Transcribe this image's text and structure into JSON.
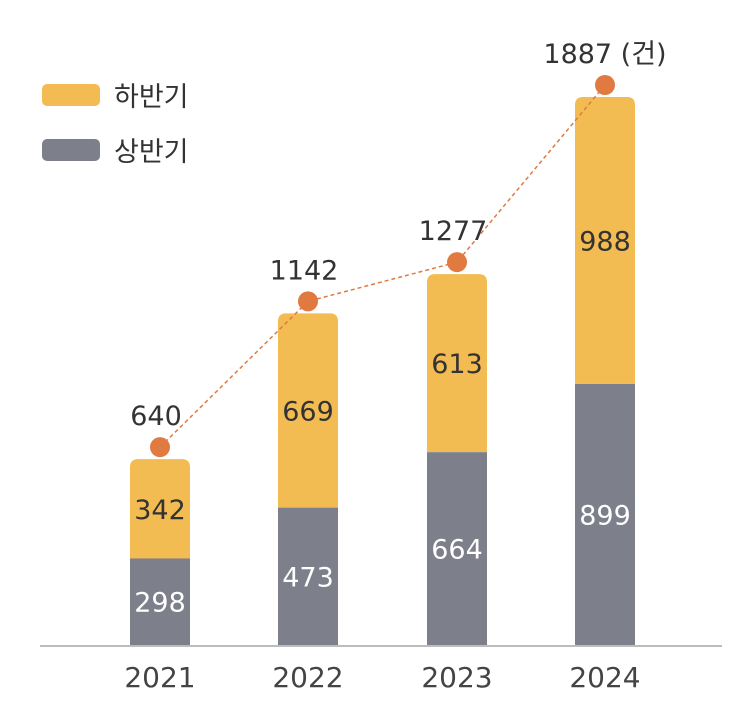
{
  "chart_data": {
    "type": "bar",
    "stacked": true,
    "categories": [
      "2021",
      "2022",
      "2023",
      "2024"
    ],
    "series": [
      {
        "name": "상반기",
        "values": [
          298,
          473,
          664,
          899
        ],
        "color": "#7D7F8A"
      },
      {
        "name": "하반기",
        "values": [
          342,
          669,
          613,
          988
        ],
        "color": "#F3BC53"
      }
    ],
    "totals": [
      640,
      1142,
      1277,
      1887
    ],
    "total_unit": "(건)",
    "total_line_color": "#E07A40",
    "legend": [
      "하반기",
      "상반기"
    ],
    "legend_placement": "top-left",
    "ylim": [
      0,
      1887
    ],
    "grid": false
  }
}
